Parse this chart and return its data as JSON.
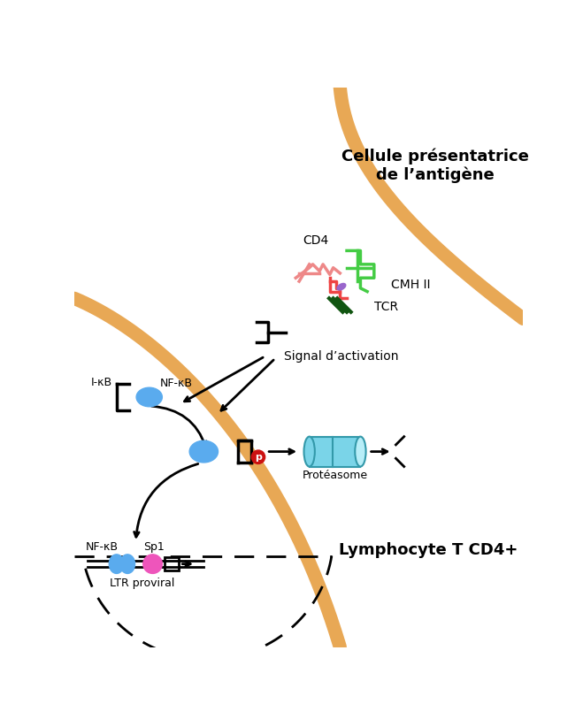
{
  "title_apc": "Cellule présentatrice\nde l’antigène",
  "title_lymph": "Lymphocyte T CD4+",
  "label_cd4": "CD4",
  "label_cmhii": "CMH II",
  "label_tcr": "TCR",
  "label_signal": "Signal d’activation",
  "label_ikb": "I-κB",
  "label_nfkb1": "NF-κB",
  "label_nfkb2": "NF-κB",
  "label_sp1": "Sp1",
  "label_ltr": "LTR proviral",
  "label_proteasome": "Protéasome",
  "label_p": "p",
  "color_blue": "#5aabee",
  "color_orange_cell": "#e8a855",
  "color_red": "#ee4444",
  "color_pink_cd4": "#ee8888",
  "color_green": "#44cc44",
  "color_dark_green": "#115511",
  "color_purple": "#9966cc",
  "color_cyan_body": "#7ad4e8",
  "color_cyan_light": "#b8eef8",
  "color_pink": "#ee55bb",
  "color_red_p": "#cc1111",
  "bg_color": "#ffffff"
}
